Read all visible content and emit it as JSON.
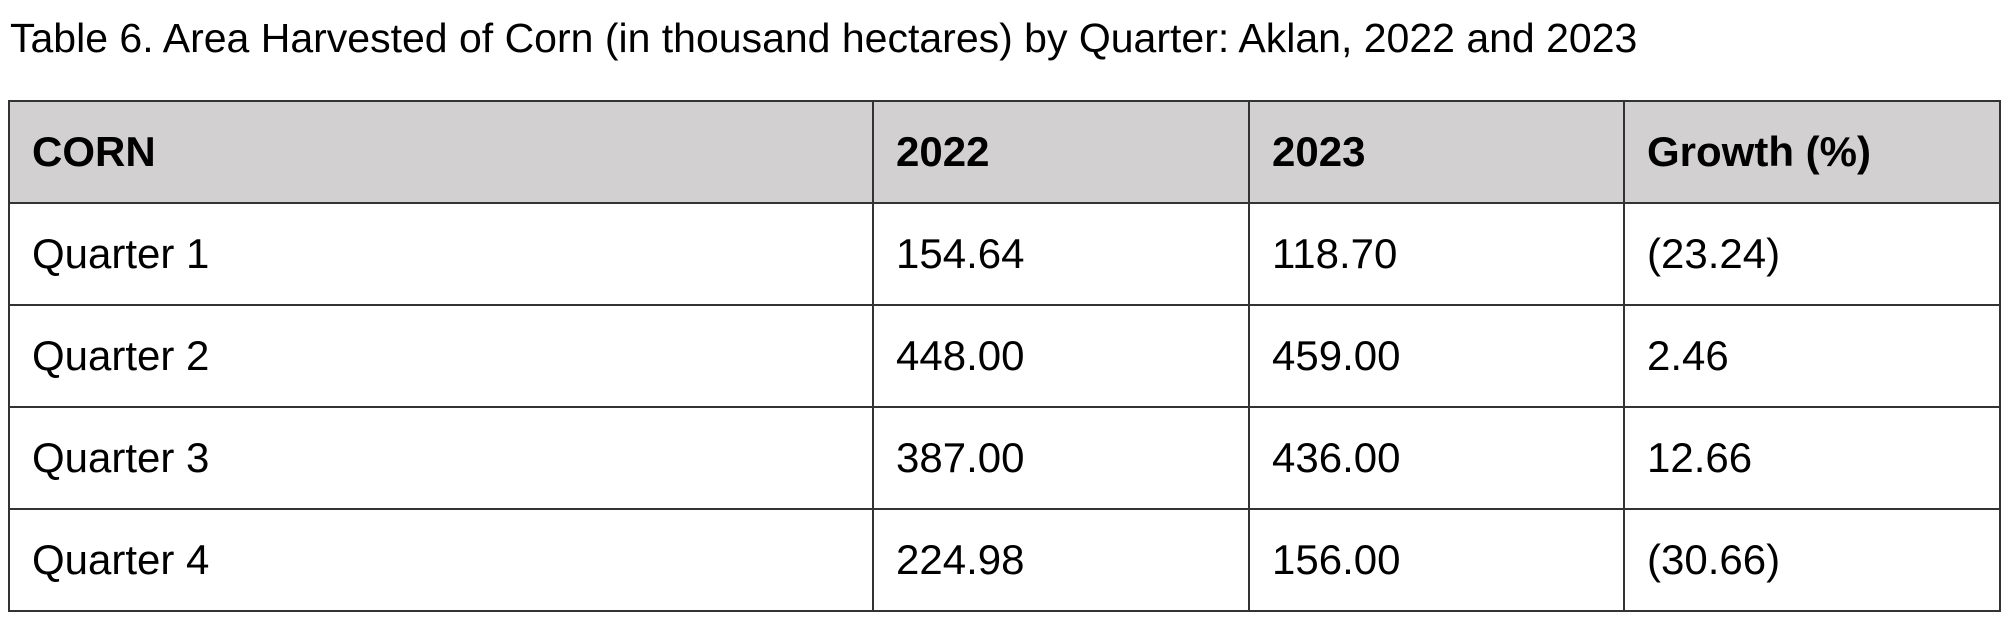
{
  "title": "Table 6. Area Harvested of Corn (in thousand hectares) by Quarter: Aklan, 2022 and 2023",
  "table": {
    "header": [
      "CORN",
      "2022",
      "2023",
      "Growth (%)"
    ],
    "rows": [
      [
        "Quarter 1",
        "154.64",
        "118.70",
        "(23.24)"
      ],
      [
        "Quarter 2",
        "448.00",
        "459.00",
        "2.46"
      ],
      [
        "Quarter 3",
        "387.00",
        "436.00",
        "12.66"
      ],
      [
        "Quarter 4",
        "224.98",
        "156.00",
        "(30.66)"
      ]
    ]
  }
}
